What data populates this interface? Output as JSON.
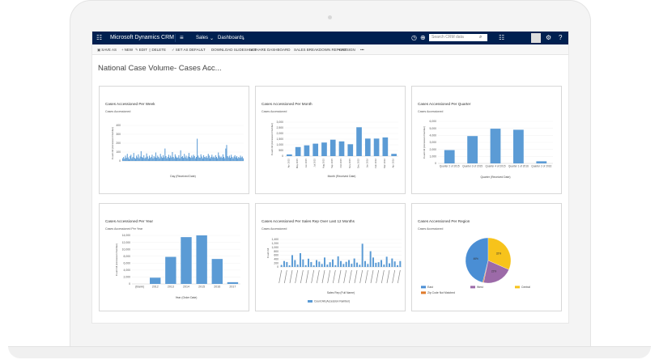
{
  "app": {
    "brand": "Microsoft Dynamics CRM",
    "nav_area": "Sales",
    "nav_page": "Dashboards",
    "search_placeholder": "Search CRM data"
  },
  "toolbar": {
    "save_as": "SAVE AS",
    "new": "NEW",
    "edit": "EDIT",
    "delete": "DELETE",
    "set_default": "SET AS DEFAULT",
    "download": "DOWNLOAD SLIDESHEET",
    "share": "SHARE DASHBOARD",
    "breakdown": "SALES BREAKDOWN REPORT",
    "assign": "ASSIGN",
    "more": "•••"
  },
  "dashboard": {
    "title": "National Case Volume- Cases Acc...",
    "chevron": "⌄"
  },
  "colors": {
    "topbar": "#002050",
    "bar": "#5b9bd5",
    "region_east": "#4a8ed4",
    "region_west": "#9c6aa8",
    "region_central": "#f7c31b",
    "region_unmatched": "#e07a2a"
  },
  "cards": [
    {
      "title": "Cases Accessioned Per Week",
      "subtitle": "Cases Accessioned"
    },
    {
      "title": "Cases Accessioned Per Month",
      "subtitle": "Cases Accessioned"
    },
    {
      "title": "Cases Accessioned Per Quarter",
      "subtitle": "Cases Accessioned"
    },
    {
      "title": "Cases Accessioned Per Year",
      "subtitle": "Cases Accessioned Per Year"
    },
    {
      "title": "Cases Accessioned Per Sales Rep Over Last 12 Months",
      "subtitle": "Cases Accessioned"
    },
    {
      "title": "Cases Accessioned Per Region",
      "subtitle": "Cases Accessioned"
    }
  ],
  "chart_data": [
    {
      "type": "bar",
      "title": "Cases Accessioned Per Week",
      "xlabel": "Day (Received Date)",
      "ylabel": "Count:All (Accession Number)",
      "ylim": [
        0,
        400
      ],
      "yticks": [
        "400",
        "300",
        "200",
        "100",
        "0"
      ],
      "values": [
        30,
        45,
        25,
        60,
        35,
        80,
        40,
        20,
        55,
        70,
        30,
        45,
        90,
        35,
        25,
        60,
        40,
        75,
        30,
        50,
        110,
        45,
        35,
        65,
        30,
        40,
        85,
        50,
        25,
        60,
        35,
        45,
        70,
        30,
        55,
        40,
        95,
        35,
        60,
        45,
        30,
        80,
        50,
        35,
        65,
        40,
        140,
        55,
        30,
        45,
        70,
        35,
        60,
        40,
        100,
        45,
        30,
        75,
        50,
        35,
        40,
        65,
        30,
        120,
        45,
        55,
        35,
        80,
        40,
        60,
        30,
        50,
        90,
        45,
        35,
        60,
        40,
        70,
        55,
        30,
        45,
        250,
        60,
        40,
        35,
        75,
        50,
        30,
        65,
        45,
        40,
        55,
        35,
        80,
        60,
        30,
        45,
        70,
        40,
        50,
        35,
        65,
        45,
        30,
        95,
        60,
        40,
        50,
        35,
        75,
        45,
        30,
        140,
        180,
        55,
        40,
        60,
        35,
        70,
        45,
        30,
        50,
        65,
        40,
        55,
        30,
        45,
        35,
        60,
        40,
        50,
        30
      ]
    },
    {
      "type": "bar",
      "title": "Cases Accessioned Per Month",
      "xlabel": "Month (Received Date)",
      "ylabel": "Count:All (Accession Number)",
      "ylim": [
        0,
        3000
      ],
      "yticks": [
        "3,000",
        "2,500",
        "2,000",
        "1,500",
        "1,000",
        "500",
        "0"
      ],
      "categories": [
        "Apr 2015",
        "May 2015",
        "Jun 2015",
        "Jul 2015",
        "Aug 2015",
        "Sep 2015",
        "Oct 2015",
        "Nov 2015",
        "Dec 2015",
        "Jan 2016",
        "Feb 2016",
        "Mar 2016",
        "Apr 2016"
      ],
      "values": [
        150,
        800,
        950,
        1100,
        1200,
        1450,
        1300,
        1050,
        2550,
        1550,
        1550,
        1650,
        200
      ]
    },
    {
      "type": "bar",
      "title": "Cases Accessioned Per Quarter",
      "xlabel": "Quarter (Received Date)",
      "ylabel": "Count:All (Accession Number)",
      "ylim": [
        0,
        6000
      ],
      "yticks": [
        "6,000",
        "5,000",
        "4,000",
        "3,000",
        "2,000",
        "1,000",
        "0"
      ],
      "categories": [
        "Quarter 2 of 2015",
        "Quarter 3 of 2015",
        "Quarter 4 of 2015",
        "Quarter 1 of 2016",
        "Quarter 2 of 2016"
      ],
      "values": [
        1900,
        3900,
        4950,
        4800,
        300
      ]
    },
    {
      "type": "bar",
      "title": "Cases Accessioned Per Year",
      "xlabel": "Year (Order Date)",
      "ylabel": "Count:All (Accession Number)",
      "ylim": [
        0,
        14000
      ],
      "yticks": [
        "14,000",
        "12,000",
        "10,000",
        "8,000",
        "6,000",
        "4,000",
        "2,000",
        "0"
      ],
      "categories": [
        "(blank)",
        "2012",
        "2013",
        "2014",
        "2015",
        "2016",
        "2017"
      ],
      "values": [
        0,
        1800,
        7800,
        13500,
        14000,
        7200,
        500
      ]
    },
    {
      "type": "bar",
      "title": "Cases Accessioned Per Sales Rep Over Last 12 Months",
      "xlabel": "Sales Rep (Full Name)",
      "ylabel": "Count:All",
      "ylim": [
        0,
        1400
      ],
      "yticks": [
        "1,400",
        "1,200",
        "1,000",
        "800",
        "600",
        "400",
        "200",
        "0"
      ],
      "legend": "Count:All (Accession Number)",
      "values": [
        100,
        300,
        250,
        80,
        600,
        350,
        120,
        700,
        380,
        90,
        420,
        250,
        80,
        350,
        270,
        150,
        480,
        120,
        240,
        380,
        90,
        540,
        300,
        150,
        260,
        350,
        160,
        430,
        220,
        110,
        1180,
        300,
        150,
        800,
        480,
        210,
        240,
        350,
        120,
        520,
        180,
        430,
        280,
        90,
        300
      ]
    },
    {
      "type": "pie",
      "title": "Cases Accessioned Per Region",
      "legend": [
        "East",
        "West",
        "Central",
        "Zip Code Not Matched"
      ],
      "values": [
        46.1,
        21.6,
        31.6,
        0.7
      ],
      "labels": [
        "46%",
        "22%",
        "32%",
        ""
      ]
    }
  ]
}
